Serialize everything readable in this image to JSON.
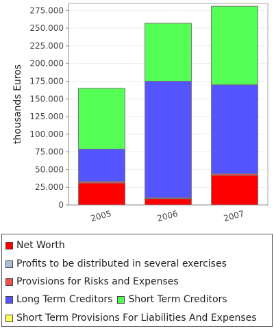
{
  "chart_data": {
    "type": "bar",
    "stacked": true,
    "ylabel": "thousands Euros",
    "categories": [
      "2005",
      "2006",
      "2007"
    ],
    "ylim": [
      0,
      285000
    ],
    "yticks": [
      "0",
      "25.000",
      "50.000",
      "75.000",
      "100.000",
      "125.000",
      "150.000",
      "175.000",
      "200.000",
      "225.000",
      "250.000",
      "275.000"
    ],
    "ytick_values": [
      0,
      25000,
      50000,
      75000,
      100000,
      125000,
      150000,
      175000,
      200000,
      225000,
      250000,
      275000
    ],
    "grid": true,
    "legend_position": "bottom",
    "series": [
      {
        "name": "Net Worth",
        "color": "#ff0000",
        "values": [
          31000,
          9000,
          42000
        ]
      },
      {
        "name": "Profits to be distributed in several exercises",
        "color": "#a6bfd8",
        "values": [
          0,
          0,
          0
        ]
      },
      {
        "name": "Provisions for Risks and Expenses",
        "color": "#f05050",
        "values": [
          2000,
          1000,
          2000
        ]
      },
      {
        "name": "Long Term Creditors",
        "color": "#5555ff",
        "values": [
          46000,
          165000,
          126000
        ]
      },
      {
        "name": "Short Term Creditors",
        "color": "#55ff55",
        "values": [
          86000,
          82000,
          111000
        ]
      },
      {
        "name": "Short Term Provisions For Liabilities And Expenses",
        "color": "#ffff55",
        "values": [
          0,
          0,
          0
        ]
      }
    ]
  }
}
